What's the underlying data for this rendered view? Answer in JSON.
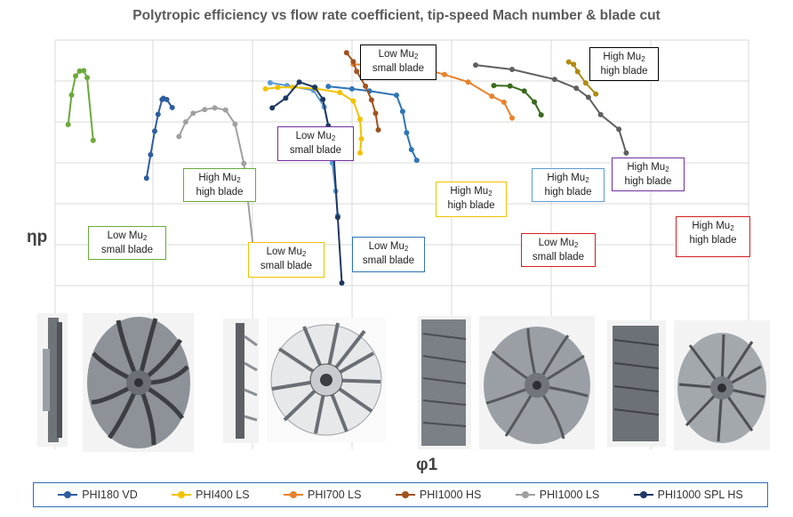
{
  "chart_data": {
    "type": "line",
    "title": "Polytropic efficiency vs flow rate coefficient, tip-speed Mach number & blade cut",
    "xlabel": "φ1",
    "ylabel": "ηp",
    "xlim": [
      0,
      100
    ],
    "ylim": [
      0,
      100
    ],
    "grid": true,
    "legend_position": "bottom",
    "series": [
      {
        "name": "PHI180 VD",
        "color": "#2e5d9e",
        "x": [
          10.9,
          11.5,
          12.1,
          12.6,
          13.2,
          13.4,
          13.9,
          14.7
        ],
        "y": [
          43.1,
          52.8,
          62.5,
          69.4,
          75.5,
          76.0,
          75.5,
          72.2
        ]
      },
      {
        "name": "PHI400 LS",
        "color": "#f2c200",
        "x": [
          28.5,
          30.3,
          32.5,
          36.0,
          39.5,
          41.5,
          42.5,
          42.7,
          42.5
        ],
        "y": [
          79.9,
          80.5,
          80.6,
          80.0,
          78.4,
          74.9,
          67.4,
          59.3,
          53.5
        ]
      },
      {
        "name": "PHI700 LS",
        "color": "#e8822c",
        "x": [
          41.5,
          45.0,
          48.0,
          51.7,
          55.0,
          58.5,
          62.0,
          63.8,
          65.0
        ],
        "y": [
          90.0,
          89.5,
          89.0,
          88.3,
          85.8,
          82.7,
          76.9,
          74.4,
          67.9
        ]
      },
      {
        "name": "PHI1000 HS",
        "color": "#a0521e",
        "x": [
          40.5,
          41.5,
          42.0,
          43.3,
          44.2,
          44.8,
          45.2
        ],
        "y": [
          94.8,
          91.1,
          87.1,
          81.0,
          75.4,
          69.8,
          63.0
        ]
      },
      {
        "name": "PHI1000 LS",
        "color": "#a0a0a0",
        "x": [
          15.7,
          16.7,
          17.8,
          19.5,
          21.0,
          22.6,
          24.0,
          25.3,
          26.7
        ],
        "y": [
          60.3,
          66.3,
          69.9,
          71.4,
          72.1,
          71.2,
          65.4,
          49.2,
          14.2
        ]
      },
      {
        "name": "PHI1000 SPL HS",
        "color": "#1f3864",
        "x": [
          29.5,
          31.5,
          33.5,
          35.8,
          37.0,
          37.8,
          38.6,
          39.2,
          39.8
        ],
        "y": [
          72.1,
          76.1,
          82.7,
          80.6,
          75.6,
          64.7,
          52.4,
          27.0,
          0.0
        ]
      }
    ],
    "extra_series": [
      {
        "color": "#6aaa3a",
        "x": [
          -0.7,
          -0.2,
          0.4,
          1.0,
          1.6,
          2.1,
          3.0
        ],
        "y": [
          65.2,
          77.4,
          85.2,
          87.2,
          87.4,
          84.5,
          58.7
        ]
      },
      {
        "color": "#5b9bd5",
        "x": [
          29.2,
          31.7,
          35.6,
          37.2,
          38.1,
          38.4,
          38.9,
          39.2
        ],
        "y": [
          82.4,
          81.3,
          79.3,
          72.5,
          60.6,
          49.4,
          37.8,
          27.7
        ]
      },
      {
        "color": "#2e75b6",
        "x": [
          37.8,
          41.3,
          43.9,
          47.9,
          48.8,
          49.4,
          50.1,
          50.9
        ],
        "y": [
          80.9,
          79.9,
          79.0,
          77.3,
          70.6,
          61.8,
          54.9,
          50.5
        ]
      },
      {
        "color": "#606060",
        "x": [
          59.6,
          65.0,
          71.3,
          74.5,
          76.3,
          78.1,
          80.8,
          81.9
        ],
        "y": [
          89.7,
          87.9,
          83.8,
          80.2,
          76.4,
          69.3,
          63.3,
          53.5
        ]
      },
      {
        "color": "#3a6b1c",
        "x": [
          62.3,
          64.7,
          66.8,
          68.3,
          69.3
        ],
        "y": [
          81.3,
          81.1,
          79.0,
          74.5,
          69.2
        ]
      },
      {
        "color": "#b08a10",
        "x": [
          73.4,
          74.1,
          74.7,
          75.9,
          77.4
        ],
        "y": [
          91.0,
          90.0,
          87.0,
          82.3,
          77.8
        ]
      }
    ],
    "annotations": [
      {
        "id": "a1",
        "line1": "Low Mu",
        "sub": "2",
        "line2": "small blade",
        "color": "#6aaa3a"
      },
      {
        "id": "a2",
        "line1": "High Mu",
        "sub": "2",
        "line2": "high blade",
        "color": "#6aaa3a"
      },
      {
        "id": "a3",
        "line1": "Low Mu",
        "sub": "2",
        "line2": "small blade",
        "color": "#7030a0"
      },
      {
        "id": "a4",
        "line1": "Low Mu",
        "sub": "2",
        "line2": "small blade",
        "color": "#f2c200"
      },
      {
        "id": "a5",
        "line1": "Low Mu",
        "sub": "2",
        "line2": "small blade",
        "color": "#000000"
      },
      {
        "id": "a6",
        "line1": "Low Mu",
        "sub": "2",
        "line2": "small blade",
        "color": "#2e75b6"
      },
      {
        "id": "a7",
        "line1": "High Mu",
        "sub": "2",
        "line2": "high blade",
        "color": "#f2c200"
      },
      {
        "id": "a8",
        "line1": "Low Mu",
        "sub": "2",
        "line2": "small blade",
        "color": "#d42020"
      },
      {
        "id": "a9",
        "line1": "High Mu",
        "sub": "2",
        "line2": "high blade",
        "color": "#5b9bd5"
      },
      {
        "id": "a10",
        "line1": "High Mu",
        "sub": "2",
        "line2": "high blade",
        "color": "#000000"
      },
      {
        "id": "a11",
        "line1": "High Mu",
        "sub": "2",
        "line2": "high blade",
        "color": "#7030a0"
      },
      {
        "id": "a12",
        "line1": "High Mu",
        "sub": "2",
        "line2": "high blade",
        "color": "#d42020"
      }
    ]
  }
}
